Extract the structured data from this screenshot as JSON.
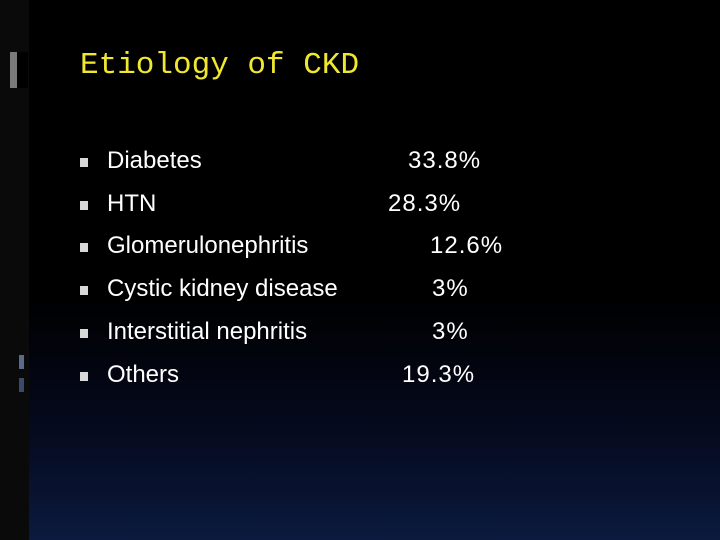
{
  "slide": {
    "title": "Etiology of CKD",
    "items": [
      {
        "label": "Diabetes",
        "value": "33.8%"
      },
      {
        "label": "HTN",
        "value": "28.3%"
      },
      {
        "label": "Glomerulonephritis",
        "value": "12.6%"
      },
      {
        "label": "Cystic kidney disease",
        "value": "3%"
      },
      {
        "label": "Interstitial nephritis",
        "value": "3%"
      },
      {
        "label": "Others",
        "value": "19.3%"
      }
    ]
  }
}
